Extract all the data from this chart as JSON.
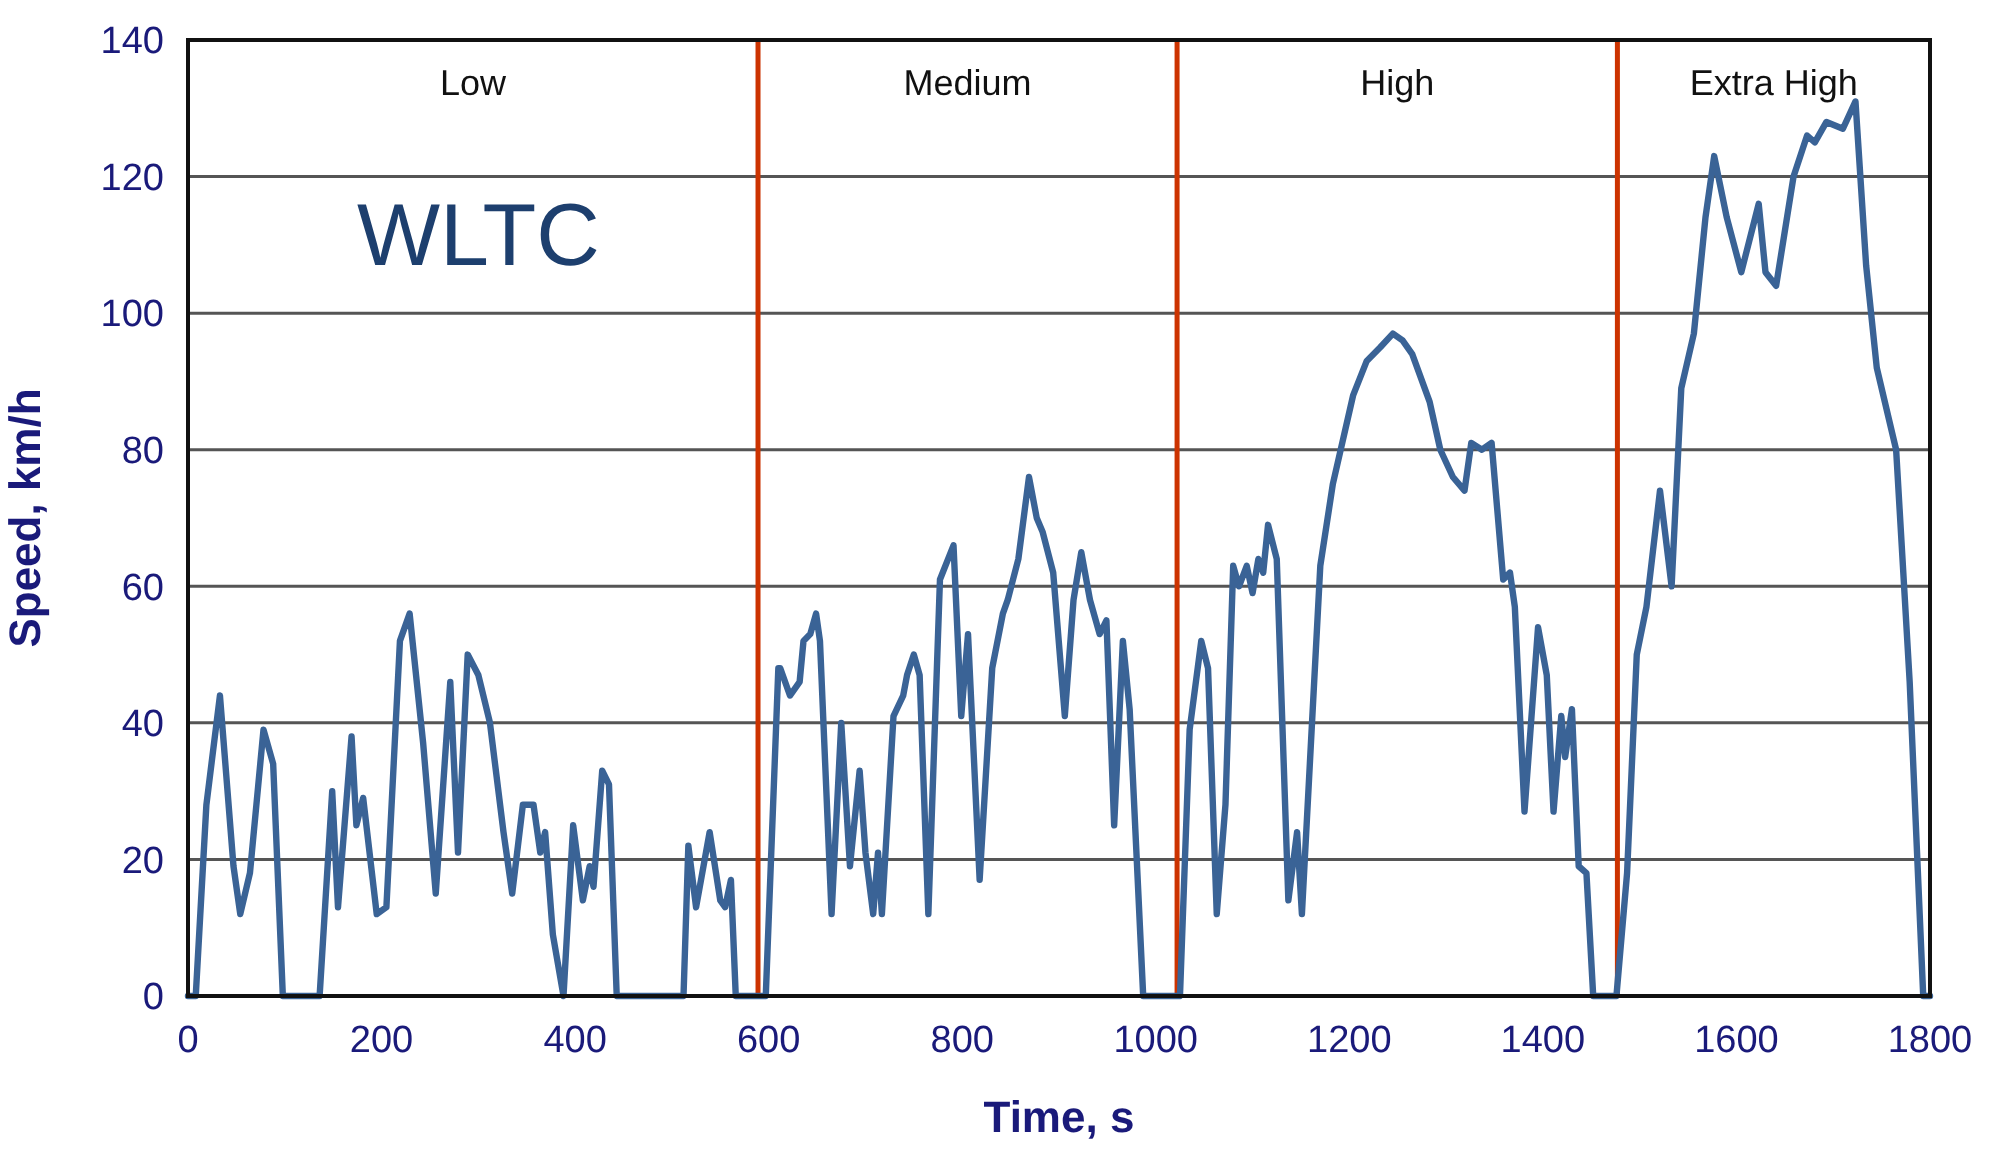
{
  "chart_data": {
    "type": "line",
    "title": "WLTC",
    "xlabel": "Time, s",
    "ylabel": "Speed, km/h",
    "xlim": [
      0,
      1800
    ],
    "xticks": [
      0,
      200,
      400,
      600,
      800,
      1000,
      1200,
      1400,
      1600,
      1800
    ],
    "ylim": [
      0,
      140
    ],
    "yticks": [
      0,
      20,
      40,
      60,
      80,
      100,
      120,
      140
    ],
    "grid": "y",
    "marker": "none",
    "line_style": "solid",
    "ref_lines": [
      {
        "axis": "x",
        "value": 589,
        "color": "#cc3300"
      },
      {
        "axis": "x",
        "value": 1022,
        "color": "#cc3300"
      },
      {
        "axis": "x",
        "value": 1477,
        "color": "#cc3300"
      }
    ],
    "annotations": [
      "Low",
      "Medium",
      "High",
      "Extra High"
    ],
    "series": [
      {
        "color": "#3a6396",
        "x": [
          0,
          8,
          19,
          33,
          47,
          54,
          64,
          78,
          88,
          98,
          136,
          149,
          155,
          169,
          174,
          181,
          195,
          205,
          219,
          229,
          243,
          256,
          271,
          279,
          289,
          300,
          312,
          326,
          335,
          346,
          357,
          364,
          369,
          377,
          388,
          398,
          408,
          415,
          419,
          428,
          435,
          443,
          512,
          517,
          525,
          539,
          550,
          555,
          561,
          566,
          597,
          610,
          612,
          622,
          632,
          636,
          643,
          649,
          653,
          665,
          675,
          684,
          694,
          700,
          708,
          713,
          717,
          729,
          739,
          743,
          750,
          756,
          765,
          777,
          791,
          799,
          806,
          818,
          831,
          842,
          847,
          858,
          869,
          877,
          883,
          894,
          906,
          915,
          923,
          932,
          942,
          949,
          957,
          966,
          973,
          987,
          1025,
          1035,
          1047,
          1054,
          1063,
          1072,
          1080,
          1086,
          1094,
          1100,
          1106,
          1111,
          1116,
          1125,
          1137,
          1146,
          1151,
          1170,
          1183,
          1204,
          1218,
          1232,
          1245,
          1255,
          1265,
          1283,
          1294,
          1307,
          1319,
          1326,
          1337,
          1347,
          1359,
          1366,
          1371,
          1381,
          1395,
          1404,
          1411,
          1419,
          1423,
          1430,
          1437,
          1445,
          1452,
          1476,
          1487,
          1497,
          1507,
          1521,
          1533,
          1543,
          1556,
          1568,
          1577,
          1590,
          1605,
          1623,
          1630,
          1641,
          1659,
          1673,
          1681,
          1693,
          1710,
          1723,
          1734,
          1745,
          1765,
          1779,
          1793,
          1800
        ],
        "values": [
          0,
          0,
          28,
          44,
          19,
          12,
          18,
          39,
          34,
          0,
          0,
          30,
          13,
          38,
          25,
          29,
          12,
          13,
          52,
          56,
          37,
          15,
          46,
          21,
          50,
          47,
          40,
          24,
          15,
          28,
          28,
          21,
          24,
          9,
          0,
          25,
          14,
          19,
          16,
          33,
          31,
          0,
          0,
          22,
          13,
          24,
          14,
          13,
          17,
          0,
          0,
          48,
          48,
          44,
          46,
          52,
          53,
          56,
          52,
          12,
          40,
          19,
          33,
          21,
          12,
          21,
          12,
          41,
          44,
          47,
          50,
          47,
          12,
          61,
          66,
          41,
          53,
          17,
          48,
          56,
          58,
          64,
          76,
          70,
          68,
          62,
          41,
          58,
          65,
          58,
          53,
          55,
          25,
          52,
          42,
          0,
          0,
          39,
          52,
          48,
          12,
          28,
          63,
          60,
          63,
          59,
          64,
          62,
          69,
          64,
          14,
          24,
          12,
          63,
          75,
          88,
          93,
          95,
          97,
          96,
          94,
          87,
          80,
          76,
          74,
          81,
          80,
          81,
          61,
          62,
          57,
          27,
          54,
          47,
          27,
          41,
          35,
          42,
          19,
          18,
          0,
          0,
          18,
          50,
          57,
          74,
          60,
          89,
          97,
          114,
          123,
          114,
          106,
          116,
          106,
          104,
          120,
          126,
          125,
          128,
          127,
          131,
          107,
          92,
          80,
          46,
          0,
          0
        ]
      }
    ]
  }
}
